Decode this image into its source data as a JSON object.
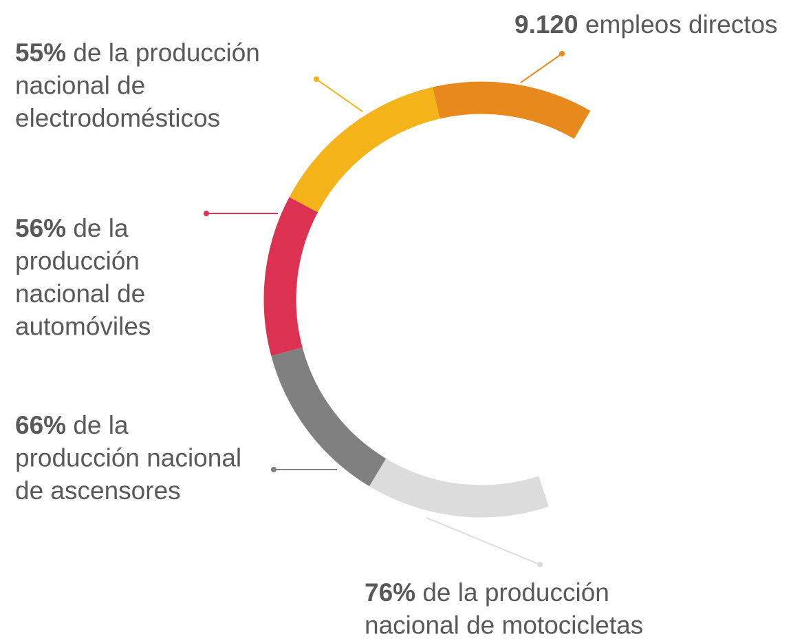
{
  "employment": {
    "highlight": "9.120",
    "text": "empleos directos"
  },
  "items": [
    {
      "highlight": "55%",
      "lines": [
        "de la producción",
        "nacional de",
        "electrodomésticos"
      ]
    },
    {
      "highlight": "56%",
      "lines": [
        "de la",
        "producción",
        "nacional de",
        "automóviles"
      ]
    },
    {
      "highlight": "66%",
      "lines": [
        "de la",
        "producción nacional",
        "de ascensores"
      ]
    },
    {
      "highlight": "76%",
      "lines": [
        "de la producción",
        "nacional de motocicletas"
      ]
    }
  ]
}
